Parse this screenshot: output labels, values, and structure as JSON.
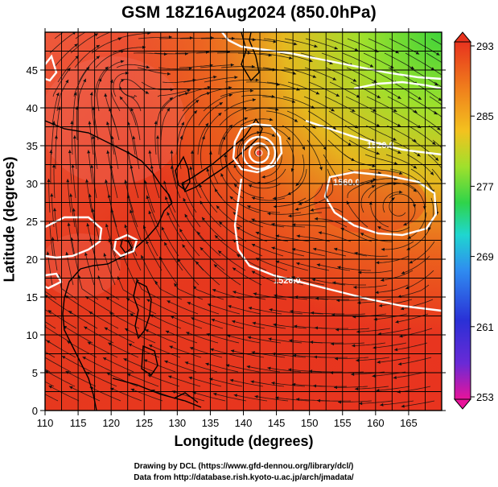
{
  "title": "GSM 18Z16Aug2024 (850.0hPa)",
  "axes": {
    "xlabel": "Longitude (degrees)",
    "ylabel": "Latitude  (degrees)",
    "x_ticks": [
      "110",
      "115",
      "120",
      "125",
      "130",
      "135",
      "140",
      "145",
      "150",
      "155",
      "160",
      "165"
    ],
    "y_ticks": [
      "0",
      "5",
      "10",
      "15",
      "20",
      "25",
      "30",
      "35",
      "40",
      "45"
    ],
    "x_range": [
      110,
      170
    ],
    "y_range": [
      0,
      50
    ]
  },
  "colorbar": {
    "labels": [
      "293",
      "285",
      "277",
      "269",
      "261",
      "253"
    ],
    "range": [
      253,
      293
    ],
    "colors": [
      "#e8139a",
      "#3a2ad6",
      "#2f8cf0",
      "#1fd6d0",
      "#44d33a",
      "#b9e62a",
      "#f3c21f",
      "#f0841c",
      "#e83a1e",
      "#e8331e"
    ]
  },
  "contour_labels": [
    "1520.0",
    "1560.0",
    "1520.0"
  ],
  "credits": {
    "line1": "Drawing by DCL (https://www.gfd-dennou.org/library/dcl/)",
    "line2": "Data from http://database.rish.kyoto-u.ac.jp/arch/jmadata/"
  }
}
